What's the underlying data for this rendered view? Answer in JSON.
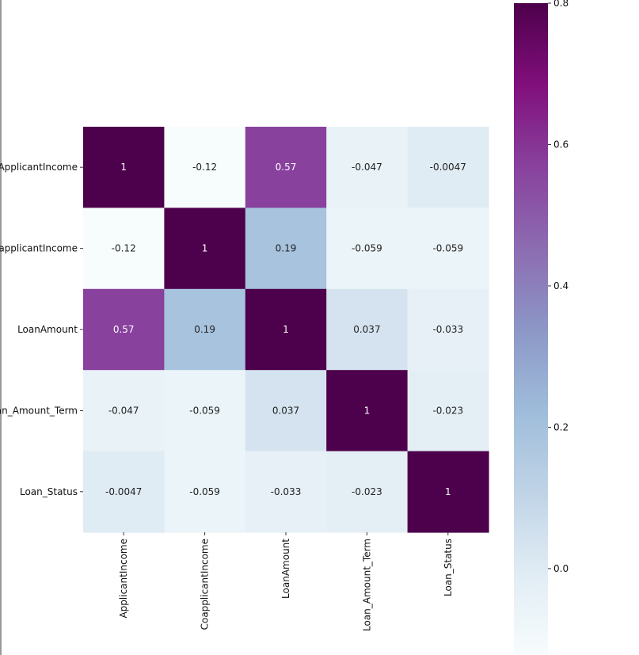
{
  "chart_data": {
    "type": "heatmap",
    "title": "",
    "row_labels": [
      "ApplicantIncome",
      "CoapplicantIncome",
      "LoanAmount",
      "Loan_Amount_Term",
      "Loan_Status"
    ],
    "col_labels": [
      "ApplicantIncome",
      "CoapplicantIncome",
      "LoanAmount",
      "Loan_Amount_Term",
      "Loan_Status"
    ],
    "values": [
      [
        1,
        -0.12,
        0.57,
        -0.047,
        -0.0047
      ],
      [
        -0.12,
        1,
        0.19,
        -0.059,
        -0.059
      ],
      [
        0.57,
        0.19,
        1,
        0.037,
        -0.033
      ],
      [
        -0.047,
        -0.059,
        0.037,
        1,
        -0.023
      ],
      [
        -0.0047,
        -0.059,
        -0.033,
        -0.023,
        1
      ]
    ],
    "annotations": [
      [
        "1",
        "-0.12",
        "0.57",
        "-0.047",
        "-0.0047"
      ],
      [
        "-0.12",
        "1",
        "0.19",
        "-0.059",
        "-0.059"
      ],
      [
        "0.57",
        "0.19",
        "1",
        "0.037",
        "-0.033"
      ],
      [
        "-0.047",
        "-0.059",
        "0.037",
        "1",
        "-0.023"
      ],
      [
        "-0.0047",
        "-0.059",
        "-0.033",
        "-0.023",
        "1"
      ]
    ],
    "colormap": "BuPu",
    "colorbar": {
      "vmin": -0.12,
      "vmax": 0.8,
      "ticks": [
        "0.0",
        "0.2",
        "0.4",
        "0.6",
        "0.8"
      ]
    },
    "grid": false,
    "legend": "colorbar-right"
  },
  "colors": {
    "min": "#f7fcfd",
    "max": "#4d004b",
    "annot_dark": "#222222",
    "annot_light": "#ffffff"
  }
}
